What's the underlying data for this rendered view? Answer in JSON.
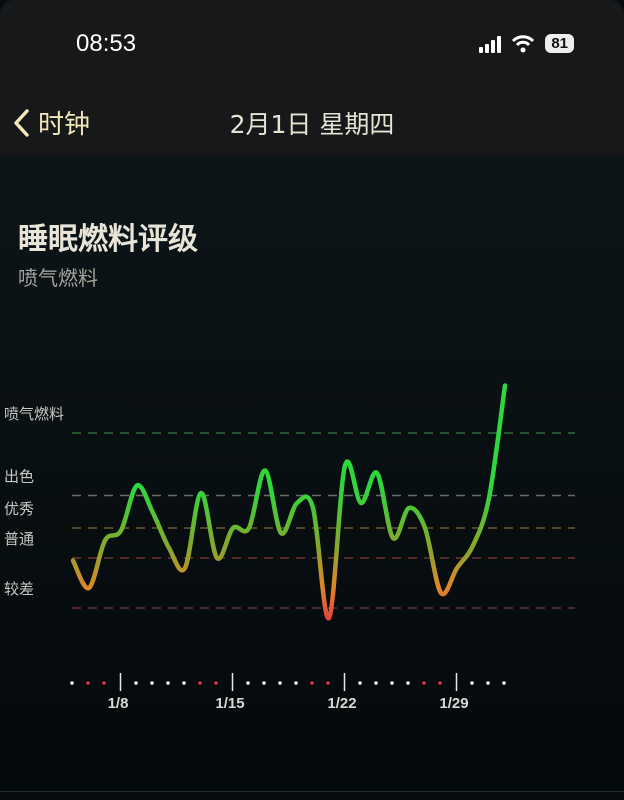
{
  "status_bar": {
    "time": "08:53",
    "battery": "81",
    "icons": [
      "signal-icon",
      "wifi-icon",
      "battery-icon"
    ]
  },
  "nav": {
    "back_label": "时钟",
    "title": "2月1日 星期四",
    "back_icon": "chevron-left-icon"
  },
  "header": {
    "title": "睡眠燃料评级",
    "subtitle": "喷气燃料"
  },
  "chart_data": {
    "type": "line",
    "title": "",
    "xlabel": "",
    "ylabel": "",
    "x": [
      "1/5",
      "1/6",
      "1/7",
      "1/8",
      "1/9",
      "1/10",
      "1/11",
      "1/12",
      "1/13",
      "1/14",
      "1/15",
      "1/16",
      "1/17",
      "1/18",
      "1/19",
      "1/20",
      "1/21",
      "1/22",
      "1/23",
      "1/24",
      "1/25",
      "1/26",
      "1/27",
      "1/28",
      "1/29",
      "1/30",
      "1/31",
      "2/1"
    ],
    "values": [
      49,
      38,
      57,
      61,
      79,
      68,
      54,
      46,
      76,
      50,
      62,
      62,
      85,
      60,
      72,
      70,
      26,
      87,
      72,
      84,
      58,
      70,
      62,
      36,
      46,
      55,
      74,
      119
    ],
    "ylim": [
      0,
      125
    ],
    "levels": [
      {
        "label": "喷气燃料",
        "value": 100,
        "color": "#2f6b37"
      },
      {
        "label": "出色",
        "value": 75,
        "color": "#6a6a66"
      },
      {
        "label": "优秀",
        "value": 62,
        "color": "#6a5536"
      },
      {
        "label": "普通",
        "value": 50,
        "color": "#6b3834"
      },
      {
        "label": "较差",
        "value": 30,
        "color": "#6a2e33"
      }
    ],
    "x_tick_labels": [
      "1/8",
      "1/15",
      "1/22",
      "1/29"
    ],
    "weekend_days": [
      "1/6",
      "1/7",
      "1/13",
      "1/14",
      "1/20",
      "1/21",
      "1/27",
      "1/28"
    ],
    "colors": {
      "high": "#2fd63c",
      "mid": "#8aa52a",
      "low": "#e0862a",
      "lowest": "#e2423a",
      "weekend_dot": "#e0334a",
      "weekday_dot": "#e6e6e6"
    },
    "grid": false,
    "legend": "none"
  }
}
